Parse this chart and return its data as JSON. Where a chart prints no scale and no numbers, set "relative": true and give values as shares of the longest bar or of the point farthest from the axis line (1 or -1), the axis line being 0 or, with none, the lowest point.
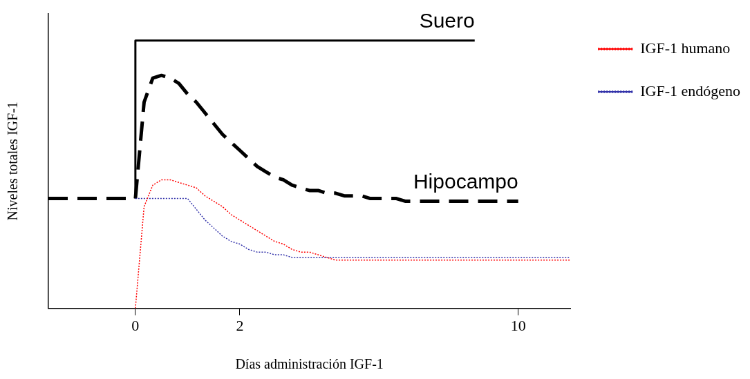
{
  "chart_data": {
    "type": "line",
    "relative": true,
    "xlabel": "Días administración IGF-1",
    "ylabel": "Niveles totales IGF-1",
    "legend": "top right",
    "categories": [
      null,
      null,
      null,
      null,
      null,
      null,
      null,
      null,
      null,
      null,
      "0",
      null,
      null,
      null,
      null,
      null,
      null,
      null,
      null,
      null,
      null,
      null,
      "2",
      null,
      null,
      null,
      null,
      null,
      null,
      null,
      null,
      null,
      null,
      null,
      null,
      null,
      null,
      null,
      null,
      null,
      null,
      null,
      null,
      null,
      null,
      null,
      null,
      null,
      null,
      null,
      null,
      null,
      null,
      null,
      "10",
      null,
      null,
      null,
      null,
      null,
      null
    ],
    "series": [
      {
        "name": "Suero",
        "type": "step",
        "color": "#000000",
        "line_style": "solid",
        "values": [
          null,
          null,
          null,
          null,
          null,
          null,
          null,
          null,
          null,
          null,
          0.41,
          1,
          1,
          1,
          1,
          1,
          1,
          1,
          1,
          1,
          1,
          1,
          1,
          1,
          1,
          1,
          1,
          1,
          1,
          1,
          1,
          1,
          1,
          1,
          1,
          1,
          1,
          1,
          1,
          1,
          1,
          1,
          1,
          1,
          1,
          1,
          1,
          1,
          1,
          1,
          null,
          null,
          null,
          null,
          null,
          null,
          null,
          null,
          null,
          null,
          null
        ]
      },
      {
        "name": "Hipocampo",
        "type": "line",
        "color": "#000000",
        "line_style": "dashed",
        "values": [
          0.41,
          0.41,
          0.41,
          0.41,
          0.41,
          0.41,
          0.41,
          0.41,
          0.41,
          0.41,
          0.41,
          0.77,
          0.86,
          0.87,
          0.86,
          0.84,
          0.8,
          0.77,
          0.73,
          0.69,
          0.65,
          0.62,
          0.59,
          0.56,
          0.53,
          0.51,
          0.49,
          0.48,
          0.46,
          0.45,
          0.44,
          0.44,
          0.43,
          0.43,
          0.42,
          0.42,
          0.42,
          0.41,
          0.41,
          0.41,
          0.41,
          0.4,
          0.4,
          0.4,
          0.4,
          0.4,
          0.4,
          0.4,
          0.4,
          0.4,
          0.4,
          0.4,
          0.4,
          0.4,
          0.4,
          null,
          null,
          null,
          null,
          null,
          null
        ]
      },
      {
        "name": "IGF-1 humano",
        "type": "line",
        "color": "#ff0000",
        "line_style": "dotted",
        "values": [
          null,
          null,
          null,
          null,
          null,
          null,
          null,
          null,
          null,
          null,
          0,
          0.38,
          0.46,
          0.48,
          0.48,
          0.47,
          0.46,
          0.45,
          0.42,
          0.4,
          0.38,
          0.35,
          0.33,
          0.31,
          0.29,
          0.27,
          0.25,
          0.24,
          0.22,
          0.21,
          0.21,
          0.2,
          0.19,
          0.18,
          0.18,
          0.18,
          0.18,
          0.18,
          0.18,
          0.18,
          0.18,
          0.18,
          0.18,
          0.18,
          0.18,
          0.18,
          0.18,
          0.18,
          0.18,
          0.18,
          0.18,
          0.18,
          0.18,
          0.18,
          0.18,
          0.18,
          0.18,
          0.18,
          0.18,
          0.18,
          0.18
        ]
      },
      {
        "name": "IGF-1 endógeno",
        "type": "line",
        "color": "#3333aa",
        "line_style": "dotted",
        "values": [
          null,
          null,
          null,
          null,
          null,
          null,
          null,
          null,
          null,
          null,
          0.41,
          0.41,
          0.41,
          0.41,
          0.41,
          0.41,
          0.41,
          0.37,
          0.33,
          0.3,
          0.27,
          0.25,
          0.24,
          0.22,
          0.21,
          0.21,
          0.2,
          0.2,
          0.19,
          0.19,
          0.19,
          0.19,
          0.19,
          0.19,
          0.19,
          0.19,
          0.19,
          0.19,
          0.19,
          0.19,
          0.19,
          0.19,
          0.19,
          0.19,
          0.19,
          0.19,
          0.19,
          0.19,
          0.19,
          0.19,
          0.19,
          0.19,
          0.19,
          0.19,
          0.19,
          0.19,
          0.19,
          0.19,
          0.19,
          0.19,
          0.19
        ]
      }
    ]
  }
}
